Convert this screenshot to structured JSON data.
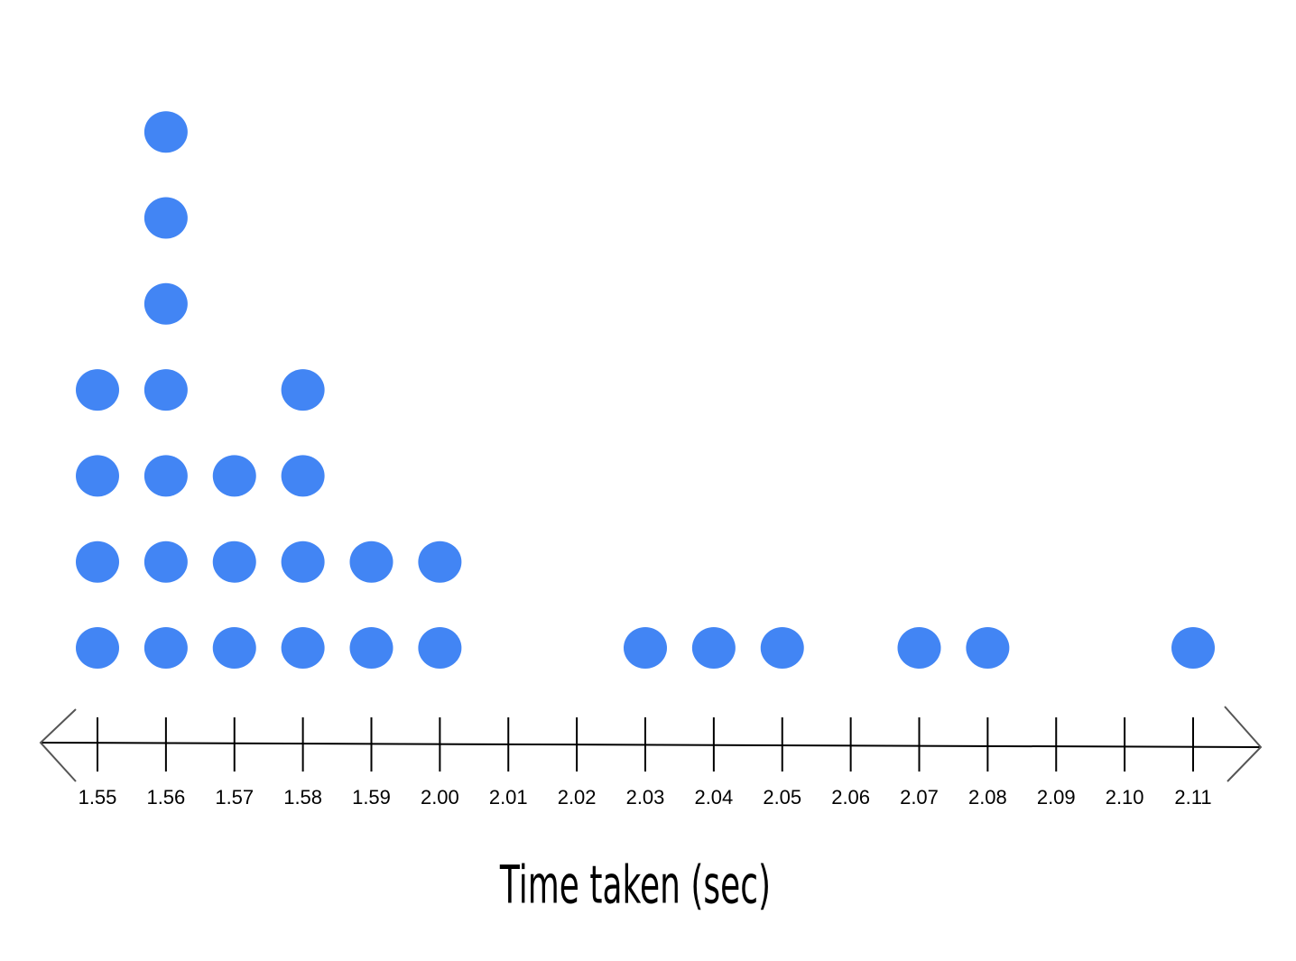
{
  "chart_data": {
    "type": "dot",
    "x_label": "Time taken (sec)",
    "categories": [
      "1.55",
      "1.56",
      "1.57",
      "1.58",
      "1.59",
      "2.00",
      "2.01",
      "2.02",
      "2.03",
      "2.04",
      "2.05",
      "2.06",
      "2.07",
      "2.08",
      "2.09",
      "2.10",
      "2.11"
    ],
    "values": [
      4,
      7,
      3,
      4,
      2,
      2,
      0,
      0,
      1,
      1,
      1,
      0,
      1,
      1,
      0,
      0,
      1
    ],
    "color": "#4285f4"
  }
}
